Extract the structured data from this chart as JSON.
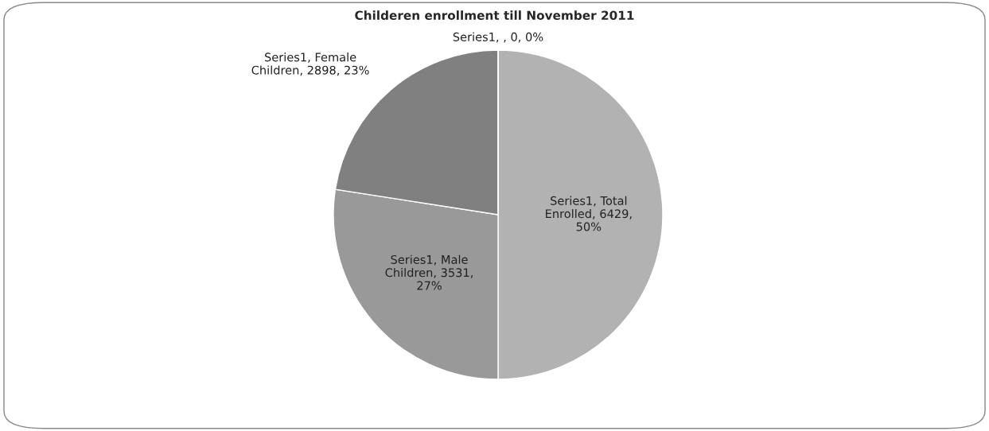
{
  "chart_data": {
    "type": "pie",
    "title": "Childeren enrollment till November 2011",
    "categories": [
      null,
      null,
      null,
      null
    ],
    "series": [
      {
        "values": [
          6429,
          3531,
          2898,
          0
        ],
        "colors": [
          "#b2b2b2",
          "#999999",
          "#808080",
          "#d9d9d9"
        ],
        "value_labels": [
          "Series1, Total Enrolled, 6429, 50%",
          "Series1, Male Children, 3531, 27%",
          "Series1, Female Children, 2898, 23%",
          "Series1, , 0, 0%"
        ]
      }
    ]
  }
}
